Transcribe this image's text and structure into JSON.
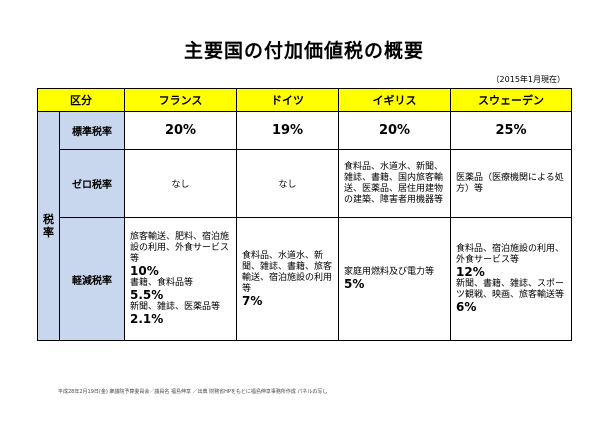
{
  "title": "主要国の付加価値税の概要",
  "as_of": "（2015年1月現在）",
  "headers": [
    "区分",
    "フランス",
    "ドイツ",
    "イギリス",
    "スウェーデン"
  ],
  "tax_label": "税率",
  "rows": {
    "standard": {
      "label": "標準税率",
      "values": [
        "20%",
        "19%",
        "20%",
        "25%"
      ]
    },
    "zero": {
      "label": "ゼロ税率",
      "france": "なし",
      "germany": "なし",
      "uk": "食料品、水道水、新聞、雑誌、書籍、国内旅客輸送、医薬品、居住用建物の建築、障害者用機器等",
      "sweden": "医薬品（医療機関による処方）等"
    },
    "reduced": {
      "label": "軽減税率",
      "france": {
        "l1": "旅客輸送、肥料、宿泊施設の利用、外食サービス等",
        "r1": "10%",
        "l2": "書籍、食料品等",
        "r2": "5.5%",
        "l3": "新聞、雑誌、医薬品等",
        "r3": "2.1%"
      },
      "germany": {
        "l1": "食料品、水道水、新聞、雑誌、書籍、旅客輸送、宿泊施設の利用等",
        "r1": "7%"
      },
      "uk": {
        "l1": "家庭用燃料及び電力等",
        "r1": "5%"
      },
      "sweden": {
        "l1": "食料品、宿泊施設の利用、外食サービス等",
        "r1": "12%",
        "l2": "新聞、書籍、雑誌、スポーツ観戦、映画、旅客輸送等",
        "r2": "6%"
      }
    }
  },
  "footer": "平成28年2月19日(金) 衆議院予算委員会／議員名 福島伸享 ／出典 財務省HPをもとに福島伸享事務所作成 パネルの写し"
}
